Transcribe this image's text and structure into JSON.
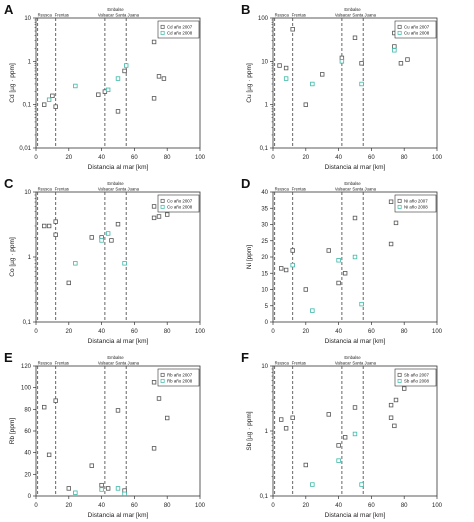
{
  "colors": {
    "s2007": "#555555",
    "s2008": "#3bb8a8",
    "axis": "#333333",
    "vline": "#555555"
  },
  "chart_data": [
    {
      "panel": "A",
      "type": "scatter",
      "scale": "log",
      "xlabel": "Distancia al mar [km]",
      "ylabel": "Cd [µg · ppm]",
      "xlim": [
        0,
        100
      ],
      "ylim": [
        0.01,
        10
      ],
      "xticks": [
        0,
        20,
        40,
        60,
        80,
        100
      ],
      "xtick_labels": [
        "0",
        "20",
        "40",
        "60",
        "80",
        "100"
      ],
      "yticks": [
        0.01,
        0.1,
        1,
        10
      ],
      "ytick_labels": [
        "0,01",
        "0,1",
        "1",
        "10"
      ],
      "locations": [
        {
          "name": "Reusca",
          "x": 1
        },
        {
          "name": "Frentas",
          "x": 12
        },
        {
          "name": "Valsacar",
          "x": 42
        },
        {
          "name": "Santa Juana",
          "x": 55
        }
      ],
      "reservoir": "Embalse",
      "legend_position": "top-right",
      "series": [
        {
          "name": "Cd año 2007",
          "color": "#555555",
          "points": [
            [
              5,
              0.1
            ],
            [
              10,
              0.16
            ],
            [
              12,
              0.09
            ],
            [
              38,
              0.17
            ],
            [
              42,
              0.2
            ],
            [
              50,
              0.07
            ],
            [
              54,
              0.6
            ],
            [
              72,
              2.8
            ],
            [
              75,
              0.45
            ],
            [
              78,
              0.4
            ],
            [
              72,
              0.14
            ]
          ]
        },
        {
          "name": "Cd año 2008",
          "color": "#3bb8a8",
          "points": [
            [
              8,
              0.13
            ],
            [
              24,
              0.27
            ],
            [
              44,
              0.22
            ],
            [
              50,
              0.4
            ],
            [
              55,
              0.8
            ]
          ]
        }
      ]
    },
    {
      "panel": "B",
      "type": "scatter",
      "scale": "log",
      "xlabel": "Distancia al mar [km]",
      "ylabel": "Cu [µg · ppm]",
      "xlim": [
        0,
        100
      ],
      "ylim": [
        0.1,
        100
      ],
      "xticks": [
        0,
        20,
        40,
        60,
        80,
        100
      ],
      "xtick_labels": [
        "0",
        "20",
        "40",
        "60",
        "80",
        "100"
      ],
      "yticks": [
        0.1,
        1,
        10,
        100
      ],
      "ytick_labels": [
        "0,1",
        "1",
        "10",
        "100"
      ],
      "locations": [
        {
          "name": "Reusca",
          "x": 1
        },
        {
          "name": "Frentas",
          "x": 12
        },
        {
          "name": "Valsacar",
          "x": 42
        },
        {
          "name": "Santa Juana",
          "x": 55
        }
      ],
      "reservoir": "Embalse",
      "legend_position": "top-right",
      "series": [
        {
          "name": "Cu año 2007",
          "color": "#555555",
          "points": [
            [
              4,
              8
            ],
            [
              8,
              7
            ],
            [
              12,
              55
            ],
            [
              20,
              1
            ],
            [
              30,
              5
            ],
            [
              42,
              12
            ],
            [
              50,
              35
            ],
            [
              54,
              9
            ],
            [
              74,
              45
            ],
            [
              74,
              22
            ],
            [
              78,
              9
            ],
            [
              82,
              11
            ]
          ]
        },
        {
          "name": "Cu año 2008",
          "color": "#3bb8a8",
          "points": [
            [
              8,
              4
            ],
            [
              24,
              3
            ],
            [
              42,
              10
            ],
            [
              54,
              3
            ],
            [
              74,
              18
            ]
          ]
        }
      ]
    },
    {
      "panel": "C",
      "type": "scatter",
      "scale": "log",
      "xlabel": "Distancia al mar [km]",
      "ylabel": "Co [µg · ppm]",
      "xlim": [
        0,
        100
      ],
      "ylim": [
        0.1,
        10
      ],
      "xticks": [
        0,
        20,
        40,
        60,
        80,
        100
      ],
      "xtick_labels": [
        "0",
        "20",
        "40",
        "60",
        "80",
        "100"
      ],
      "yticks": [
        0.1,
        1,
        10
      ],
      "ytick_labels": [
        "0,1",
        "1",
        "10"
      ],
      "locations": [
        {
          "name": "Reusca",
          "x": 1
        },
        {
          "name": "Frentas",
          "x": 12
        },
        {
          "name": "Valsacar",
          "x": 42
        },
        {
          "name": "Santa Juana",
          "x": 55
        }
      ],
      "reservoir": "Embalse",
      "legend_position": "top-right",
      "series": [
        {
          "name": "Co año 2007",
          "color": "#555555",
          "points": [
            [
              5,
              3
            ],
            [
              8,
              3
            ],
            [
              12,
              2.2
            ],
            [
              12,
              3.5
            ],
            [
              20,
              0.4
            ],
            [
              34,
              2
            ],
            [
              40,
              2
            ],
            [
              46,
              1.8
            ],
            [
              50,
              3.2
            ],
            [
              72,
              4
            ],
            [
              72,
              6
            ],
            [
              75,
              4.2
            ],
            [
              80,
              4.5
            ]
          ]
        },
        {
          "name": "Co año 2008",
          "color": "#3bb8a8",
          "points": [
            [
              24,
              0.8
            ],
            [
              40,
              1.8
            ],
            [
              44,
              2.3
            ],
            [
              54,
              0.8
            ]
          ]
        }
      ]
    },
    {
      "panel": "D",
      "type": "scatter",
      "scale": "linear",
      "xlabel": "Distancia al mar [km]",
      "ylabel": "Ni [ppm]",
      "xlim": [
        0,
        100
      ],
      "ylim": [
        0,
        40
      ],
      "xticks": [
        0,
        20,
        40,
        60,
        80,
        100
      ],
      "xtick_labels": [
        "0",
        "20",
        "40",
        "60",
        "80",
        "100"
      ],
      "yticks": [
        0,
        5,
        10,
        15,
        20,
        25,
        30,
        35,
        40
      ],
      "ytick_labels": [
        "0",
        "5",
        "10",
        "15",
        "20",
        "25",
        "30",
        "35",
        "40"
      ],
      "locations": [
        {
          "name": "Reusca",
          "x": 1
        },
        {
          "name": "Frentas",
          "x": 12
        },
        {
          "name": "Valsacar",
          "x": 42
        },
        {
          "name": "Santa Juana",
          "x": 55
        }
      ],
      "reservoir": "Embalse",
      "legend_position": "top-right",
      "series": [
        {
          "name": "Ni año 2007",
          "color": "#555555",
          "points": [
            [
              5,
              16.5
            ],
            [
              8,
              16
            ],
            [
              12,
              22
            ],
            [
              20,
              10
            ],
            [
              34,
              22
            ],
            [
              40,
              12
            ],
            [
              44,
              15
            ],
            [
              50,
              32
            ],
            [
              72,
              37
            ],
            [
              72,
              24
            ],
            [
              75,
              30.5
            ],
            [
              80,
              36
            ]
          ]
        },
        {
          "name": "Ni año 2008",
          "color": "#3bb8a8",
          "points": [
            [
              12,
              17.5
            ],
            [
              24,
              3.5
            ],
            [
              40,
              19
            ],
            [
              50,
              20
            ],
            [
              54,
              5.5
            ]
          ]
        }
      ]
    },
    {
      "panel": "E",
      "type": "scatter",
      "scale": "linear",
      "xlabel": "Distancia al mar [km]",
      "ylabel": "Rb [ppm]",
      "xlim": [
        0,
        100
      ],
      "ylim": [
        0,
        120
      ],
      "xticks": [
        0,
        20,
        40,
        60,
        80,
        100
      ],
      "xtick_labels": [
        "0",
        "20",
        "40",
        "60",
        "80",
        "100"
      ],
      "yticks": [
        0,
        20,
        40,
        60,
        80,
        100,
        120
      ],
      "ytick_labels": [
        "0",
        "20",
        "40",
        "60",
        "80",
        "100",
        "120"
      ],
      "locations": [
        {
          "name": "Reusca",
          "x": 1
        },
        {
          "name": "Frentas",
          "x": 12
        },
        {
          "name": "Valsacar",
          "x": 42
        },
        {
          "name": "Santa Juana",
          "x": 55
        }
      ],
      "reservoir": "Embalse",
      "legend_position": "top-right",
      "series": [
        {
          "name": "Rb año 2007",
          "color": "#555555",
          "points": [
            [
              5,
              82
            ],
            [
              8,
              38
            ],
            [
              12,
              88
            ],
            [
              20,
              7
            ],
            [
              34,
              28
            ],
            [
              40,
              10
            ],
            [
              44,
              7
            ],
            [
              50,
              79
            ],
            [
              54,
              5
            ],
            [
              72,
              105
            ],
            [
              72,
              44
            ],
            [
              75,
              90
            ],
            [
              80,
              72
            ]
          ]
        },
        {
          "name": "Rb año 2008",
          "color": "#3bb8a8",
          "points": [
            [
              24,
              3
            ],
            [
              40,
              6
            ],
            [
              50,
              7
            ],
            [
              54,
              2
            ]
          ]
        }
      ]
    },
    {
      "panel": "F",
      "type": "scatter",
      "scale": "log",
      "xlabel": "Distancia al mar [km]",
      "ylabel": "Sb [µg · ppm]",
      "xlim": [
        0,
        100
      ],
      "ylim": [
        0.1,
        10
      ],
      "xticks": [
        0,
        20,
        40,
        60,
        80,
        100
      ],
      "xtick_labels": [
        "0",
        "20",
        "40",
        "60",
        "80",
        "100"
      ],
      "yticks": [
        0.1,
        1,
        10
      ],
      "ytick_labels": [
        "0,1",
        "1",
        "10"
      ],
      "locations": [
        {
          "name": "Reusca",
          "x": 1
        },
        {
          "name": "Frentas",
          "x": 12
        },
        {
          "name": "Valsacar",
          "x": 42
        },
        {
          "name": "Santa Juana",
          "x": 55
        }
      ],
      "reservoir": "Embalse",
      "legend_position": "top-right",
      "series": [
        {
          "name": "Sb año 2007",
          "color": "#555555",
          "points": [
            [
              5,
              1.5
            ],
            [
              8,
              1.1
            ],
            [
              12,
              1.6
            ],
            [
              20,
              0.3
            ],
            [
              34,
              1.8
            ],
            [
              40,
              0.6
            ],
            [
              44,
              0.8
            ],
            [
              50,
              2.3
            ],
            [
              72,
              1.6
            ],
            [
              72,
              2.5
            ],
            [
              75,
              3
            ],
            [
              80,
              4.5
            ],
            [
              74,
              1.2
            ]
          ]
        },
        {
          "name": "Sb año 2008",
          "color": "#3bb8a8",
          "points": [
            [
              24,
              0.15
            ],
            [
              40,
              0.35
            ],
            [
              50,
              0.9
            ],
            [
              54,
              0.15
            ]
          ]
        }
      ]
    }
  ]
}
